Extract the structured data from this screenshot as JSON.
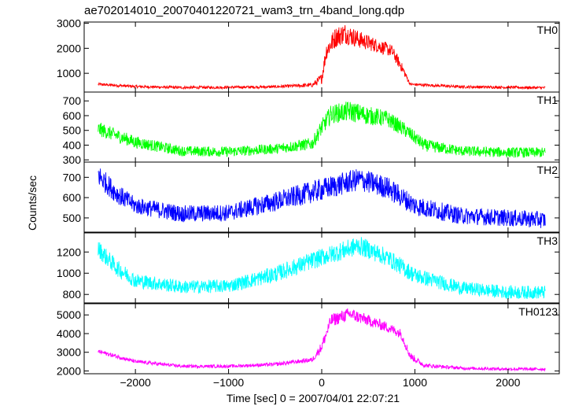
{
  "title": "ae702014010_20070401220721_wam3_trn_4band_long.qdp",
  "ylabel": "Counts/sec",
  "xlabel": "Time [sec] 0 = 2007/04/01 22:07:21",
  "chart_data": {
    "type": "line",
    "title": "ae702014010_20070401220721_wam3_trn_4band_long.qdp",
    "xlabel": "Time [sec] 0 = 2007/04/01 22:07:21",
    "ylabel": "Counts/sec",
    "xlim": [
      -2550,
      2550
    ],
    "x_ticks": [
      -2000,
      -1000,
      0,
      1000,
      2000
    ],
    "grid": false,
    "series": [
      {
        "name": "TH0",
        "color": "#ff0000",
        "ylim": [
          250,
          3050
        ],
        "y_ticks": [
          1000,
          2000,
          3000
        ],
        "x": [
          -2400,
          -2000,
          -1500,
          -1000,
          -500,
          -100,
          0,
          50,
          150,
          250,
          400,
          600,
          750,
          850,
          950,
          1500,
          2000,
          2400
        ],
        "y": [
          560,
          470,
          430,
          440,
          460,
          530,
          800,
          1900,
          2450,
          2600,
          2350,
          2100,
          1900,
          1300,
          560,
          460,
          440,
          420
        ],
        "noise": [
          40,
          40,
          40,
          40,
          40,
          60,
          150,
          250,
          300,
          300,
          250,
          200,
          180,
          150,
          40,
          40,
          40,
          40
        ]
      },
      {
        "name": "TH1",
        "color": "#00ff00",
        "ylim": [
          285,
          760
        ],
        "y_ticks": [
          300,
          400,
          500,
          600,
          700
        ],
        "x": [
          -2400,
          -2000,
          -1500,
          -1000,
          -500,
          -100,
          0,
          100,
          300,
          500,
          700,
          900,
          1100,
          1500,
          2000,
          2400
        ],
        "y": [
          510,
          420,
          360,
          355,
          375,
          410,
          520,
          610,
          630,
          600,
          580,
          500,
          400,
          360,
          350,
          350
        ],
        "noise": [
          35,
          30,
          25,
          25,
          25,
          30,
          40,
          45,
          50,
          45,
          40,
          35,
          30,
          25,
          25,
          25
        ]
      },
      {
        "name": "TH2",
        "color": "#0000ff",
        "ylim": [
          430,
          775
        ],
        "y_ticks": [
          500,
          600,
          700
        ],
        "x": [
          -2400,
          -2200,
          -2000,
          -1500,
          -1000,
          -500,
          0,
          400,
          700,
          1000,
          1500,
          2000,
          2400
        ],
        "y": [
          710,
          620,
          560,
          520,
          525,
          580,
          640,
          690,
          650,
          560,
          510,
          500,
          490
        ],
        "noise": [
          40,
          35,
          30,
          30,
          30,
          35,
          40,
          40,
          40,
          35,
          30,
          30,
          30
        ]
      },
      {
        "name": "TH3",
        "color": "#00ffff",
        "ylim": [
          720,
          1380
        ],
        "y_ticks": [
          800,
          1000,
          1200
        ],
        "x": [
          -2400,
          -2200,
          -2000,
          -1500,
          -1000,
          -500,
          0,
          400,
          700,
          1000,
          1500,
          2000,
          2400
        ],
        "y": [
          1230,
          1050,
          930,
          870,
          880,
          990,
          1150,
          1260,
          1150,
          980,
          860,
          820,
          820
        ],
        "noise": [
          60,
          55,
          50,
          45,
          45,
          55,
          60,
          65,
          60,
          55,
          45,
          45,
          45
        ]
      },
      {
        "name": "TH0123",
        "color": "#ff00ff",
        "ylim": [
          1850,
          5600
        ],
        "y_ticks": [
          2000,
          3000,
          4000,
          5000
        ],
        "x": [
          -2400,
          -2000,
          -1500,
          -1000,
          -500,
          -100,
          0,
          100,
          300,
          500,
          700,
          850,
          950,
          1100,
          1500,
          2000,
          2400
        ],
        "y": [
          3050,
          2500,
          2250,
          2250,
          2350,
          2600,
          3300,
          4700,
          5050,
          4700,
          4350,
          4000,
          2800,
          2300,
          2150,
          2100,
          2100
        ],
        "noise": [
          80,
          70,
          60,
          60,
          70,
          90,
          200,
          250,
          250,
          220,
          200,
          180,
          150,
          80,
          60,
          60,
          60
        ]
      }
    ]
  }
}
